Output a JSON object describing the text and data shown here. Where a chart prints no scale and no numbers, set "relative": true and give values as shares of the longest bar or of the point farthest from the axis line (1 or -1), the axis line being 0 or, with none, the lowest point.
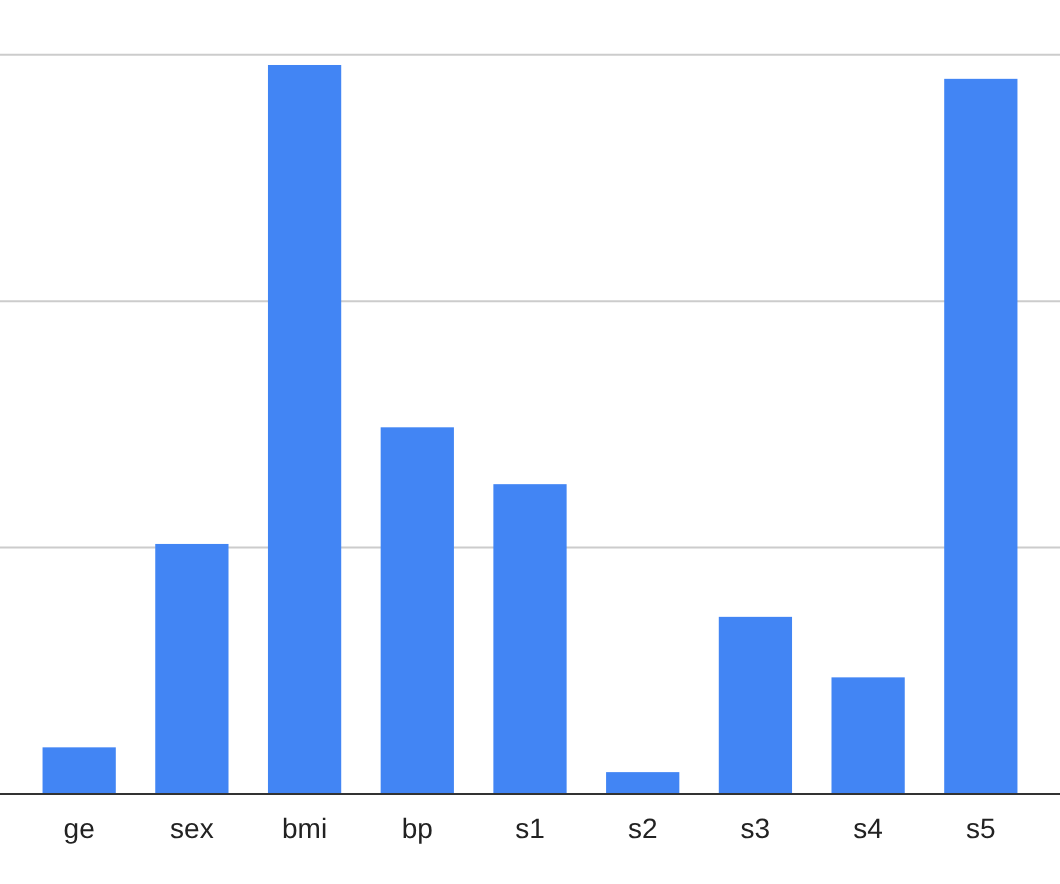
{
  "chart_data": {
    "type": "bar",
    "relative": true,
    "categories": [
      "ge",
      "sex",
      "bmi",
      "bp",
      "s1",
      "s2",
      "s3",
      "s4",
      "s5"
    ],
    "values": [
      0.064,
      0.343,
      1,
      0.503,
      0.425,
      0.03,
      0.243,
      0.16,
      0.981
    ],
    "color": "#4285f4",
    "ref_lines": [
      {
        "axis": "y",
        "value": 0.338,
        "color": "#cccccc"
      },
      {
        "axis": "y",
        "value": 0.676,
        "color": "#cccccc"
      },
      {
        "axis": "y",
        "value": 1.014,
        "color": "#cccccc"
      }
    ]
  }
}
